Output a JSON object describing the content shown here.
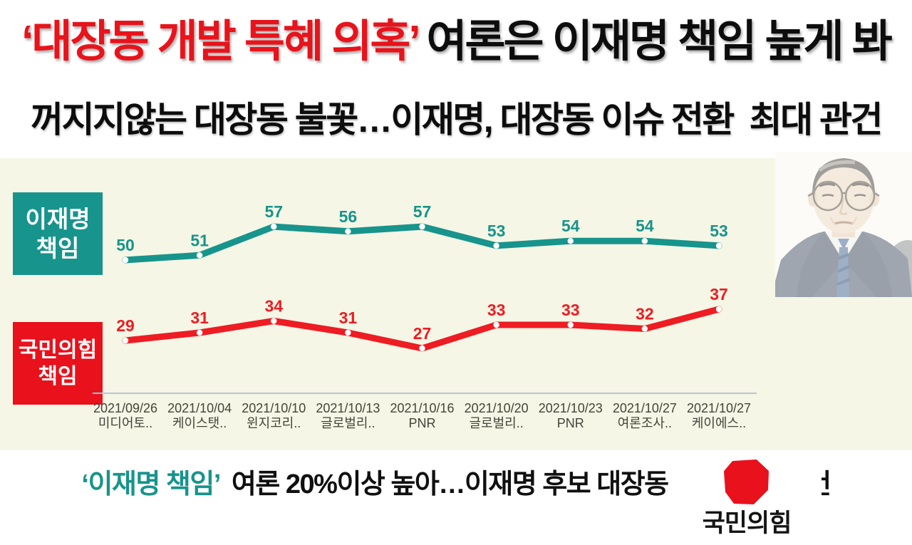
{
  "colors": {
    "panel_background": "#f5f6e5",
    "teal": "#17948c",
    "red_line": "#ee1c23",
    "red_box": "#e8111c",
    "headline_red": "#e8131b",
    "axis_line": "#b7c5da",
    "category_text": "#44443c"
  },
  "headline": {
    "line1_highlight": "‘대장동 개발 특혜 의혹’",
    "line1_rest": " 여론은 이재명 책임 높게 봐",
    "line2": "꺼지지않는 대장동 불꽃…이재명, 대장동 이슈 전환  최대 관건"
  },
  "series_labels": {
    "lee": {
      "line1": "이재명",
      "line2": "책임"
    },
    "ppp": {
      "line1": "국민의힘",
      "line2": "책임"
    }
  },
  "chart_data": {
    "type": "line",
    "categories": [
      {
        "date": "2021/09/26",
        "pollster": "미디어토.."
      },
      {
        "date": "2021/10/04",
        "pollster": "케이스탯.."
      },
      {
        "date": "2021/10/10",
        "pollster": "윈지코리.."
      },
      {
        "date": "2021/10/13",
        "pollster": "글로벌리.."
      },
      {
        "date": "2021/10/16",
        "pollster": "PNR"
      },
      {
        "date": "2021/10/20",
        "pollster": "글로벌리.."
      },
      {
        "date": "2021/10/23",
        "pollster": "PNR"
      },
      {
        "date": "2021/10/27",
        "pollster": "여론조사.."
      },
      {
        "date": "2021/10/27",
        "pollster": "케이에스.."
      }
    ],
    "series": [
      {
        "name": "이재명 책임",
        "color": "#17948c",
        "values": [
          50,
          51,
          57,
          56,
          57,
          53,
          54,
          54,
          53
        ]
      },
      {
        "name": "국민의힘 책임",
        "color": "#ee1c23",
        "values": [
          29,
          31,
          34,
          31,
          27,
          33,
          33,
          32,
          37
        ]
      }
    ],
    "point_labels": true,
    "y_axis_visible": false,
    "grid": false,
    "legend_position": "left-boxes",
    "unit": "%"
  },
  "logo": {
    "text": "국민의힘"
  },
  "footer": {
    "highlight": "‘이재명 책임’",
    "rest": "  여론 20%이상 높아…이재명 후보 대장동 이슈 탈출 관건"
  }
}
